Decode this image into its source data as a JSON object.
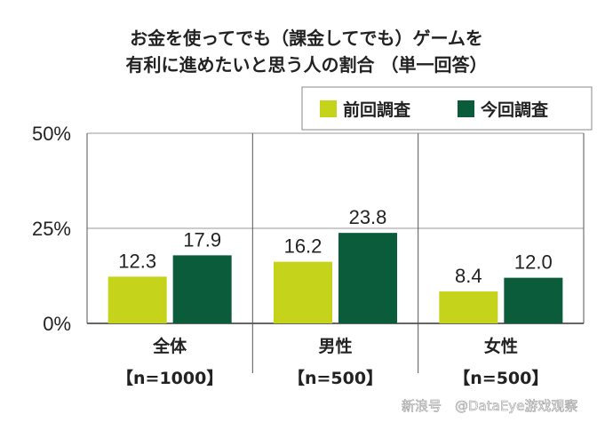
{
  "chart_data": {
    "type": "bar",
    "title": [
      "お金を使ってでも（課金してでも）ゲームを",
      "有利に進めたいと思う人の割合 （単一回答）"
    ],
    "categories": [
      "全体",
      "男性",
      "女性"
    ],
    "category_sublabels": [
      "【n=1000】",
      "【n=500】",
      "【n=500】"
    ],
    "series": [
      {
        "name": "前回調査",
        "values": [
          12.3,
          16.2,
          8.4
        ],
        "color": "#c5d41b"
      },
      {
        "name": "今回調査",
        "values": [
          17.9,
          23.8,
          12.0
        ],
        "color": "#0b5c3b"
      }
    ],
    "data_labels": [
      [
        "12.3",
        "16.2",
        "8.4"
      ],
      [
        "17.9",
        "23.8",
        "12.0"
      ]
    ],
    "yticks": [
      "0%",
      "25%",
      "50%"
    ],
    "ytick_values": [
      0,
      25,
      50
    ],
    "ylim": [
      0,
      50
    ],
    "grid": true,
    "legend_position": "top-right"
  },
  "watermark": "@DataEye游戏观察",
  "watermark_logo_text": "新浪号"
}
